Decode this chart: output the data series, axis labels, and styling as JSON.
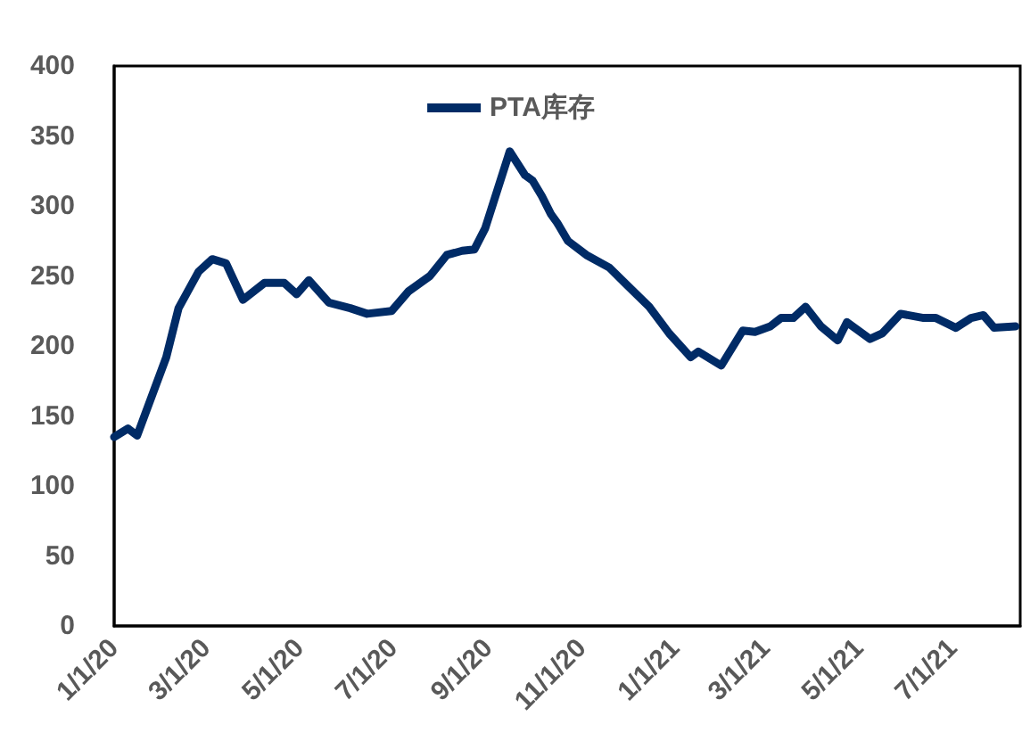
{
  "chart_data": {
    "type": "line",
    "x": [
      "2020-01-01",
      "2020-01-10",
      "2020-01-16",
      "2020-02-04",
      "2020-02-12",
      "2020-02-25",
      "2020-03-05",
      "2020-03-14",
      "2020-03-25",
      "2020-04-08",
      "2020-04-21",
      "2020-04-29",
      "2020-05-07",
      "2020-05-20",
      "2020-06-03",
      "2020-06-14",
      "2020-06-30",
      "2020-07-11",
      "2020-07-25",
      "2020-08-05",
      "2020-08-15",
      "2020-08-23",
      "2020-08-30",
      "2020-09-15",
      "2020-09-25",
      "2020-09-30",
      "2020-10-06",
      "2020-10-12",
      "2020-10-16",
      "2020-10-23",
      "2020-11-04",
      "2020-11-19",
      "2020-12-01",
      "2020-12-15",
      "2020-12-28",
      "2021-01-11",
      "2021-01-16",
      "2021-01-31",
      "2021-02-14",
      "2021-02-22",
      "2021-03-04",
      "2021-03-11",
      "2021-03-19",
      "2021-03-27",
      "2021-04-06",
      "2021-04-17",
      "2021-04-23",
      "2021-05-08",
      "2021-05-16",
      "2021-05-28",
      "2021-06-12",
      "2021-06-20",
      "2021-07-03",
      "2021-07-13",
      "2021-07-21",
      "2021-07-28",
      "2021-08-11"
    ],
    "series": [
      {
        "name": "PTA库存",
        "color": "#002b66",
        "values": [
          135,
          141,
          136,
          192,
          227,
          253,
          262,
          259,
          233,
          245,
          245,
          237,
          247,
          231,
          227,
          223,
          225,
          239,
          250,
          265,
          268,
          269,
          284,
          339,
          322,
          318,
          307,
          294,
          288,
          275,
          265,
          256,
          243,
          228,
          209,
          192,
          196,
          186,
          211,
          210,
          214,
          220,
          220,
          228,
          214,
          204,
          217,
          205,
          209,
          223,
          220,
          220,
          213,
          220,
          222,
          213,
          214
        ]
      }
    ],
    "xlim": [
      "2020-01-01",
      "2021-08-14"
    ],
    "xticks": [
      {
        "value": "2020-01-01",
        "label": "1/1/20"
      },
      {
        "value": "2020-03-01",
        "label": "3/1/20"
      },
      {
        "value": "2020-05-01",
        "label": "5/1/20"
      },
      {
        "value": "2020-07-01",
        "label": "7/1/20"
      },
      {
        "value": "2020-09-01",
        "label": "9/1/20"
      },
      {
        "value": "2020-11-01",
        "label": "11/1/20"
      },
      {
        "value": "2021-01-01",
        "label": "1/1/21"
      },
      {
        "value": "2021-03-01",
        "label": "3/1/21"
      },
      {
        "value": "2021-05-01",
        "label": "5/1/21"
      },
      {
        "value": "2021-07-01",
        "label": "7/1/21"
      }
    ],
    "ylim": [
      0,
      400
    ],
    "yticks": [
      0,
      50,
      100,
      150,
      200,
      250,
      300,
      350,
      400
    ],
    "grid": false,
    "legend": "top",
    "marker": "none",
    "line_style": "solid"
  }
}
